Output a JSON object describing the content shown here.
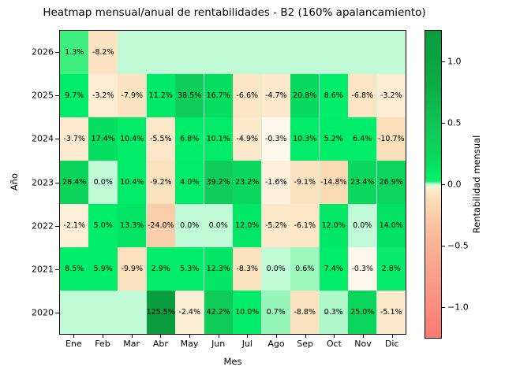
{
  "chart_data": {
    "type": "heatmap",
    "title": "Heatmap mensual/anual de rentabilidades - B2 (160% apalancamiento)",
    "xlabel": "Mes",
    "ylabel": "Año",
    "x_ticks": [
      "Ene",
      "Feb",
      "Mar",
      "Abr",
      "May",
      "Jun",
      "Jul",
      "Ago",
      "Sep",
      "Oct",
      "Nov",
      "Dic"
    ],
    "y_ticks": [
      "2026",
      "2025",
      "2024",
      "2023",
      "2022",
      "2021",
      "2020"
    ],
    "annotation_format": "one decimal + %",
    "grid": false,
    "rows": [
      {
        "year": "2026",
        "values_pct": [
          1.3,
          -8.2,
          null,
          null,
          null,
          null,
          null,
          null,
          null,
          null,
          null,
          null
        ]
      },
      {
        "year": "2025",
        "values_pct": [
          9.7,
          -3.2,
          -7.9,
          11.2,
          38.5,
          16.7,
          -6.6,
          -4.7,
          20.8,
          8.6,
          -6.8,
          -3.2
        ]
      },
      {
        "year": "2024",
        "values_pct": [
          -3.7,
          17.4,
          10.4,
          -5.5,
          6.8,
          10.1,
          -4.9,
          -0.3,
          10.3,
          5.2,
          6.4,
          -10.7
        ]
      },
      {
        "year": "2023",
        "values_pct": [
          28.4,
          0.0,
          10.4,
          -9.2,
          4.0,
          39.2,
          23.2,
          -1.6,
          -9.1,
          -14.8,
          23.4,
          26.9
        ]
      },
      {
        "year": "2022",
        "values_pct": [
          -2.1,
          5.0,
          13.3,
          -24.0,
          0.0,
          0.0,
          12.0,
          -5.2,
          -6.1,
          12.0,
          0.0,
          14.0
        ]
      },
      {
        "year": "2021",
        "values_pct": [
          8.5,
          5.9,
          -9.9,
          2.9,
          5.3,
          12.3,
          -8.3,
          0.0,
          0.6,
          7.4,
          -0.3,
          2.8
        ]
      },
      {
        "year": "2020",
        "values_pct": [
          null,
          null,
          null,
          125.5,
          -2.4,
          42.2,
          10.0,
          0.7,
          -8.8,
          0.3,
          25.0,
          -5.1
        ]
      }
    ],
    "colorbar": {
      "label": "Rentabilidad mensual",
      "tick_labels": [
        "1.0",
        "0.5",
        "0.0",
        "−0.5",
        "−1.0"
      ],
      "tick_values": [
        1.0,
        0.5,
        0.0,
        -0.5,
        -1.0
      ],
      "vmin": -1.26,
      "vmax": 1.26
    },
    "colors": {
      "empty_cell": "#c0fad7",
      "zero_cell": "#c0fad7",
      "positive_vivid": "#00ee6a",
      "positive_dark": "#0a9c3e",
      "negative_near_zero": "#fffaf0",
      "negative_peach": "#fbe1c2",
      "negative_deep": "#fa7674",
      "annotation_text": "#000000",
      "background": "#ffffff"
    }
  }
}
